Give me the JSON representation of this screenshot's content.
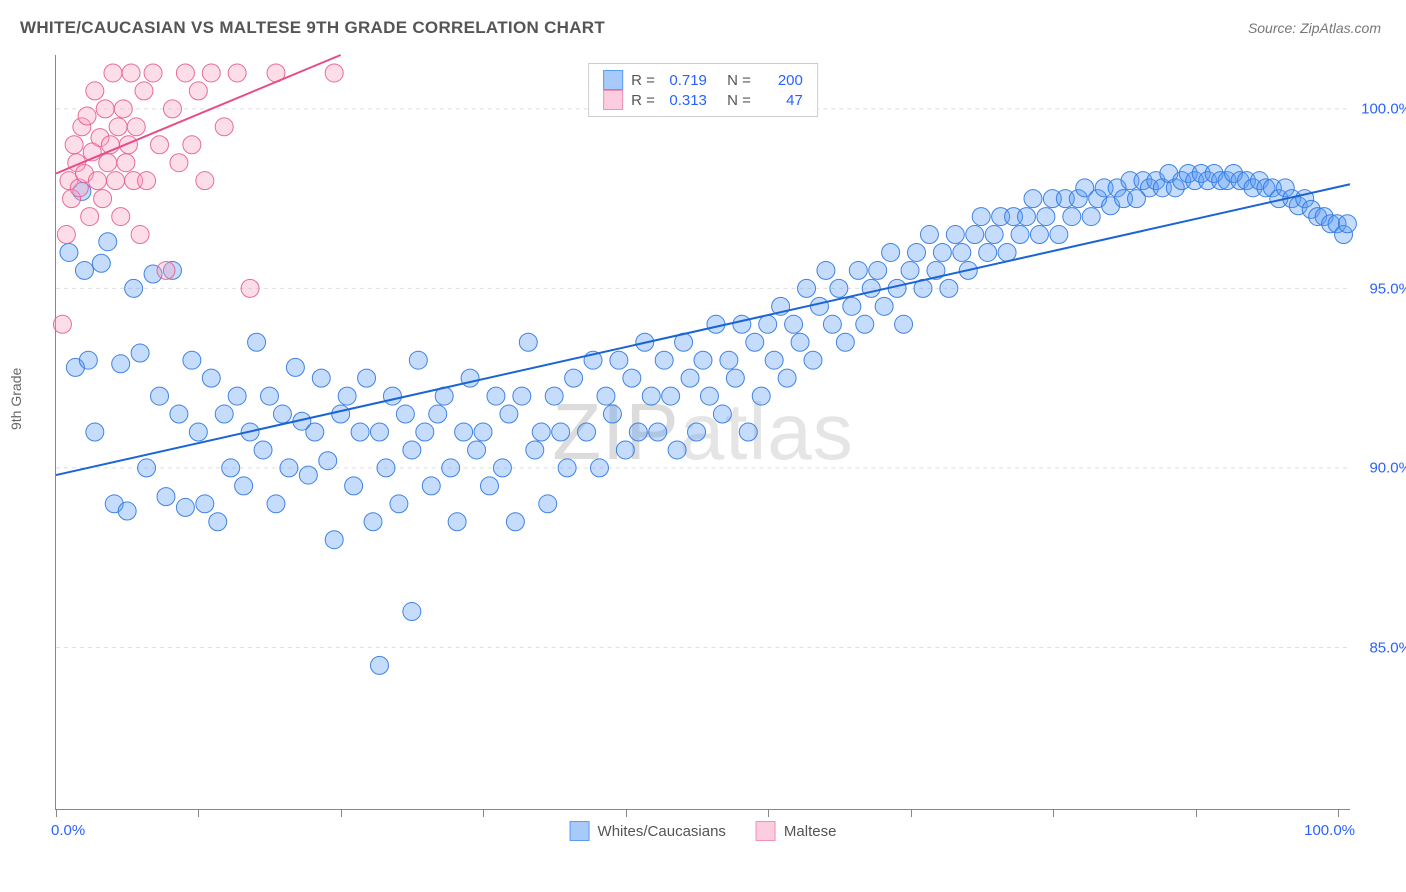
{
  "title": "WHITE/CAUCASIAN VS MALTESE 9TH GRADE CORRELATION CHART",
  "source": "Source: ZipAtlas.com",
  "watermark_a": "ZIP",
  "watermark_b": "atlas",
  "y_axis_label": "9th Grade",
  "chart": {
    "type": "scatter",
    "background_color": "#ffffff",
    "grid_color": "#dddddd",
    "axis_color": "#888888",
    "xlim": [
      0,
      100
    ],
    "ylim": [
      80.5,
      101.5
    ],
    "x_tick_positions": [
      0,
      11,
      22,
      33,
      44,
      55,
      66,
      77,
      88,
      99
    ],
    "x_tick_labels": {
      "left": "0.0%",
      "right": "100.0%"
    },
    "y_ticks": [
      {
        "v": 85.0,
        "label": "85.0%"
      },
      {
        "v": 90.0,
        "label": "90.0%"
      },
      {
        "v": 95.0,
        "label": "95.0%"
      },
      {
        "v": 100.0,
        "label": "100.0%"
      }
    ],
    "marker_radius": 9,
    "marker_fill_opacity": 0.35,
    "marker_stroke_opacity": 0.9,
    "line_width": 2,
    "fontsize_title": 17,
    "fontsize_tick": 15,
    "fontsize_axis_label": 14
  },
  "series": [
    {
      "name": "Whites/Caucasians",
      "color": "#5a9bf6",
      "stroke": "#2f78e0",
      "line_color": "#1a64d4",
      "R": "0.719",
      "N": "200",
      "trend_line": {
        "x1": 0,
        "y1": 89.8,
        "x2": 100,
        "y2": 97.9
      },
      "points": [
        [
          1.0,
          96.0
        ],
        [
          1.5,
          92.8
        ],
        [
          2.0,
          97.7
        ],
        [
          2.2,
          95.5
        ],
        [
          2.5,
          93.0
        ],
        [
          3.0,
          91.0
        ],
        [
          3.5,
          95.7
        ],
        [
          4.0,
          96.3
        ],
        [
          4.5,
          89.0
        ],
        [
          5.0,
          92.9
        ],
        [
          5.5,
          88.8
        ],
        [
          6.0,
          95.0
        ],
        [
          6.5,
          93.2
        ],
        [
          7.0,
          90.0
        ],
        [
          7.5,
          95.4
        ],
        [
          8.0,
          92.0
        ],
        [
          8.5,
          89.2
        ],
        [
          9.0,
          95.5
        ],
        [
          9.5,
          91.5
        ],
        [
          10.0,
          88.9
        ],
        [
          10.5,
          93.0
        ],
        [
          11.0,
          91.0
        ],
        [
          11.5,
          89.0
        ],
        [
          12.0,
          92.5
        ],
        [
          12.5,
          88.5
        ],
        [
          13.0,
          91.5
        ],
        [
          13.5,
          90.0
        ],
        [
          14.0,
          92.0
        ],
        [
          14.5,
          89.5
        ],
        [
          15.0,
          91.0
        ],
        [
          15.5,
          93.5
        ],
        [
          16.0,
          90.5
        ],
        [
          16.5,
          92.0
        ],
        [
          17.0,
          89.0
        ],
        [
          17.5,
          91.5
        ],
        [
          18.0,
          90.0
        ],
        [
          18.5,
          92.8
        ],
        [
          19.0,
          91.3
        ],
        [
          19.5,
          89.8
        ],
        [
          20.0,
          91.0
        ],
        [
          20.5,
          92.5
        ],
        [
          21.0,
          90.2
        ],
        [
          21.5,
          88.0
        ],
        [
          22.0,
          91.5
        ],
        [
          22.5,
          92.0
        ],
        [
          23.0,
          89.5
        ],
        [
          23.5,
          91.0
        ],
        [
          24.0,
          92.5
        ],
        [
          24.5,
          88.5
        ],
        [
          25.0,
          91.0
        ],
        [
          25.0,
          84.5
        ],
        [
          25.5,
          90.0
        ],
        [
          26.0,
          92.0
        ],
        [
          26.5,
          89.0
        ],
        [
          27.0,
          91.5
        ],
        [
          27.5,
          90.5
        ],
        [
          27.5,
          86.0
        ],
        [
          28.0,
          93.0
        ],
        [
          28.5,
          91.0
        ],
        [
          29.0,
          89.5
        ],
        [
          29.5,
          91.5
        ],
        [
          30.0,
          92.0
        ],
        [
          30.5,
          90.0
        ],
        [
          31.0,
          88.5
        ],
        [
          31.5,
          91.0
        ],
        [
          32.0,
          92.5
        ],
        [
          32.5,
          90.5
        ],
        [
          33.0,
          91.0
        ],
        [
          33.5,
          89.5
        ],
        [
          34.0,
          92.0
        ],
        [
          34.5,
          90.0
        ],
        [
          35.0,
          91.5
        ],
        [
          35.5,
          88.5
        ],
        [
          36.0,
          92.0
        ],
        [
          36.5,
          93.5
        ],
        [
          37.0,
          90.5
        ],
        [
          37.5,
          91.0
        ],
        [
          38.0,
          89.0
        ],
        [
          38.5,
          92.0
        ],
        [
          39.0,
          91.0
        ],
        [
          39.5,
          90.0
        ],
        [
          40.0,
          92.5
        ],
        [
          41.0,
          91.0
        ],
        [
          41.5,
          93.0
        ],
        [
          42.0,
          90.0
        ],
        [
          42.5,
          92.0
        ],
        [
          43.0,
          91.5
        ],
        [
          43.5,
          93.0
        ],
        [
          44.0,
          90.5
        ],
        [
          44.5,
          92.5
        ],
        [
          45.0,
          91.0
        ],
        [
          45.5,
          93.5
        ],
        [
          46.0,
          92.0
        ],
        [
          46.5,
          91.0
        ],
        [
          47.0,
          93.0
        ],
        [
          47.5,
          92.0
        ],
        [
          48.0,
          90.5
        ],
        [
          48.5,
          93.5
        ],
        [
          49.0,
          92.5
        ],
        [
          49.5,
          91.0
        ],
        [
          50.0,
          93.0
        ],
        [
          50.5,
          92.0
        ],
        [
          51.0,
          94.0
        ],
        [
          51.5,
          91.5
        ],
        [
          52.0,
          93.0
        ],
        [
          52.5,
          92.5
        ],
        [
          53.0,
          94.0
        ],
        [
          53.5,
          91.0
        ],
        [
          54.0,
          93.5
        ],
        [
          54.5,
          92.0
        ],
        [
          55.0,
          94.0
        ],
        [
          55.5,
          93.0
        ],
        [
          56.0,
          94.5
        ],
        [
          56.5,
          92.5
        ],
        [
          57.0,
          94.0
        ],
        [
          57.5,
          93.5
        ],
        [
          58.0,
          95.0
        ],
        [
          58.5,
          93.0
        ],
        [
          59.0,
          94.5
        ],
        [
          59.5,
          95.5
        ],
        [
          60.0,
          94.0
        ],
        [
          60.5,
          95.0
        ],
        [
          61.0,
          93.5
        ],
        [
          61.5,
          94.5
        ],
        [
          62.0,
          95.5
        ],
        [
          62.5,
          94.0
        ],
        [
          63.0,
          95.0
        ],
        [
          63.5,
          95.5
        ],
        [
          64.0,
          94.5
        ],
        [
          64.5,
          96.0
        ],
        [
          65.0,
          95.0
        ],
        [
          65.5,
          94.0
        ],
        [
          66.0,
          95.5
        ],
        [
          66.5,
          96.0
        ],
        [
          67.0,
          95.0
        ],
        [
          67.5,
          96.5
        ],
        [
          68.0,
          95.5
        ],
        [
          68.5,
          96.0
        ],
        [
          69.0,
          95.0
        ],
        [
          69.5,
          96.5
        ],
        [
          70.0,
          96.0
        ],
        [
          70.5,
          95.5
        ],
        [
          71.0,
          96.5
        ],
        [
          71.5,
          97.0
        ],
        [
          72.0,
          96.0
        ],
        [
          72.5,
          96.5
        ],
        [
          73.0,
          97.0
        ],
        [
          73.5,
          96.0
        ],
        [
          74.0,
          97.0
        ],
        [
          74.5,
          96.5
        ],
        [
          75.0,
          97.0
        ],
        [
          75.5,
          97.5
        ],
        [
          76.0,
          96.5
        ],
        [
          76.5,
          97.0
        ],
        [
          77.0,
          97.5
        ],
        [
          77.5,
          96.5
        ],
        [
          78.0,
          97.5
        ],
        [
          78.5,
          97.0
        ],
        [
          79.0,
          97.5
        ],
        [
          79.5,
          97.8
        ],
        [
          80.0,
          97.0
        ],
        [
          80.5,
          97.5
        ],
        [
          81.0,
          97.8
        ],
        [
          81.5,
          97.3
        ],
        [
          82.0,
          97.8
        ],
        [
          82.5,
          97.5
        ],
        [
          83.0,
          98.0
        ],
        [
          83.5,
          97.5
        ],
        [
          84.0,
          98.0
        ],
        [
          84.5,
          97.8
        ],
        [
          85.0,
          98.0
        ],
        [
          85.5,
          97.8
        ],
        [
          86.0,
          98.2
        ],
        [
          86.5,
          97.8
        ],
        [
          87.0,
          98.0
        ],
        [
          87.5,
          98.2
        ],
        [
          88.0,
          98.0
        ],
        [
          88.5,
          98.2
        ],
        [
          89.0,
          98.0
        ],
        [
          89.5,
          98.2
        ],
        [
          90.0,
          98.0
        ],
        [
          90.5,
          98.0
        ],
        [
          91.0,
          98.2
        ],
        [
          91.5,
          98.0
        ],
        [
          92.0,
          98.0
        ],
        [
          92.5,
          97.8
        ],
        [
          93.0,
          98.0
        ],
        [
          93.5,
          97.8
        ],
        [
          94.0,
          97.8
        ],
        [
          94.5,
          97.5
        ],
        [
          95.0,
          97.8
        ],
        [
          95.5,
          97.5
        ],
        [
          96.0,
          97.3
        ],
        [
          96.5,
          97.5
        ],
        [
          97.0,
          97.2
        ],
        [
          97.5,
          97.0
        ],
        [
          98.0,
          97.0
        ],
        [
          98.5,
          96.8
        ],
        [
          99.0,
          96.8
        ],
        [
          99.5,
          96.5
        ],
        [
          99.8,
          96.8
        ]
      ]
    },
    {
      "name": "Maltese",
      "color": "#f8a0bd",
      "stroke": "#e65d8f",
      "line_color": "#e94b89",
      "R": "0.313",
      "N": "47",
      "trend_line": {
        "x1": 0,
        "y1": 98.2,
        "x2": 22,
        "y2": 101.5
      },
      "points": [
        [
          0.5,
          94.0
        ],
        [
          0.8,
          96.5
        ],
        [
          1.0,
          98.0
        ],
        [
          1.2,
          97.5
        ],
        [
          1.4,
          99.0
        ],
        [
          1.6,
          98.5
        ],
        [
          1.8,
          97.8
        ],
        [
          2.0,
          99.5
        ],
        [
          2.2,
          98.2
        ],
        [
          2.4,
          99.8
        ],
        [
          2.6,
          97.0
        ],
        [
          2.8,
          98.8
        ],
        [
          3.0,
          100.5
        ],
        [
          3.2,
          98.0
        ],
        [
          3.4,
          99.2
        ],
        [
          3.6,
          97.5
        ],
        [
          3.8,
          100.0
        ],
        [
          4.0,
          98.5
        ],
        [
          4.2,
          99.0
        ],
        [
          4.4,
          101.0
        ],
        [
          4.6,
          98.0
        ],
        [
          4.8,
          99.5
        ],
        [
          5.0,
          97.0
        ],
        [
          5.2,
          100.0
        ],
        [
          5.4,
          98.5
        ],
        [
          5.6,
          99.0
        ],
        [
          5.8,
          101.0
        ],
        [
          6.0,
          98.0
        ],
        [
          6.2,
          99.5
        ],
        [
          6.5,
          96.5
        ],
        [
          6.8,
          100.5
        ],
        [
          7.0,
          98.0
        ],
        [
          7.5,
          101.0
        ],
        [
          8.0,
          99.0
        ],
        [
          8.5,
          95.5
        ],
        [
          9.0,
          100.0
        ],
        [
          9.5,
          98.5
        ],
        [
          10.0,
          101.0
        ],
        [
          10.5,
          99.0
        ],
        [
          11.0,
          100.5
        ],
        [
          11.5,
          98.0
        ],
        [
          12.0,
          101.0
        ],
        [
          13.0,
          99.5
        ],
        [
          14.0,
          101.0
        ],
        [
          15.0,
          95.0
        ],
        [
          17.0,
          101.0
        ],
        [
          21.5,
          101.0
        ]
      ]
    }
  ],
  "legend_bottom": [
    {
      "label": "Whites/Caucasians",
      "fill": "#a8caf9",
      "stroke": "#5a9bf6"
    },
    {
      "label": "Maltese",
      "fill": "#fbcdde",
      "stroke": "#f191b8"
    }
  ],
  "stats_labels": {
    "r": "R =",
    "n": "N ="
  }
}
